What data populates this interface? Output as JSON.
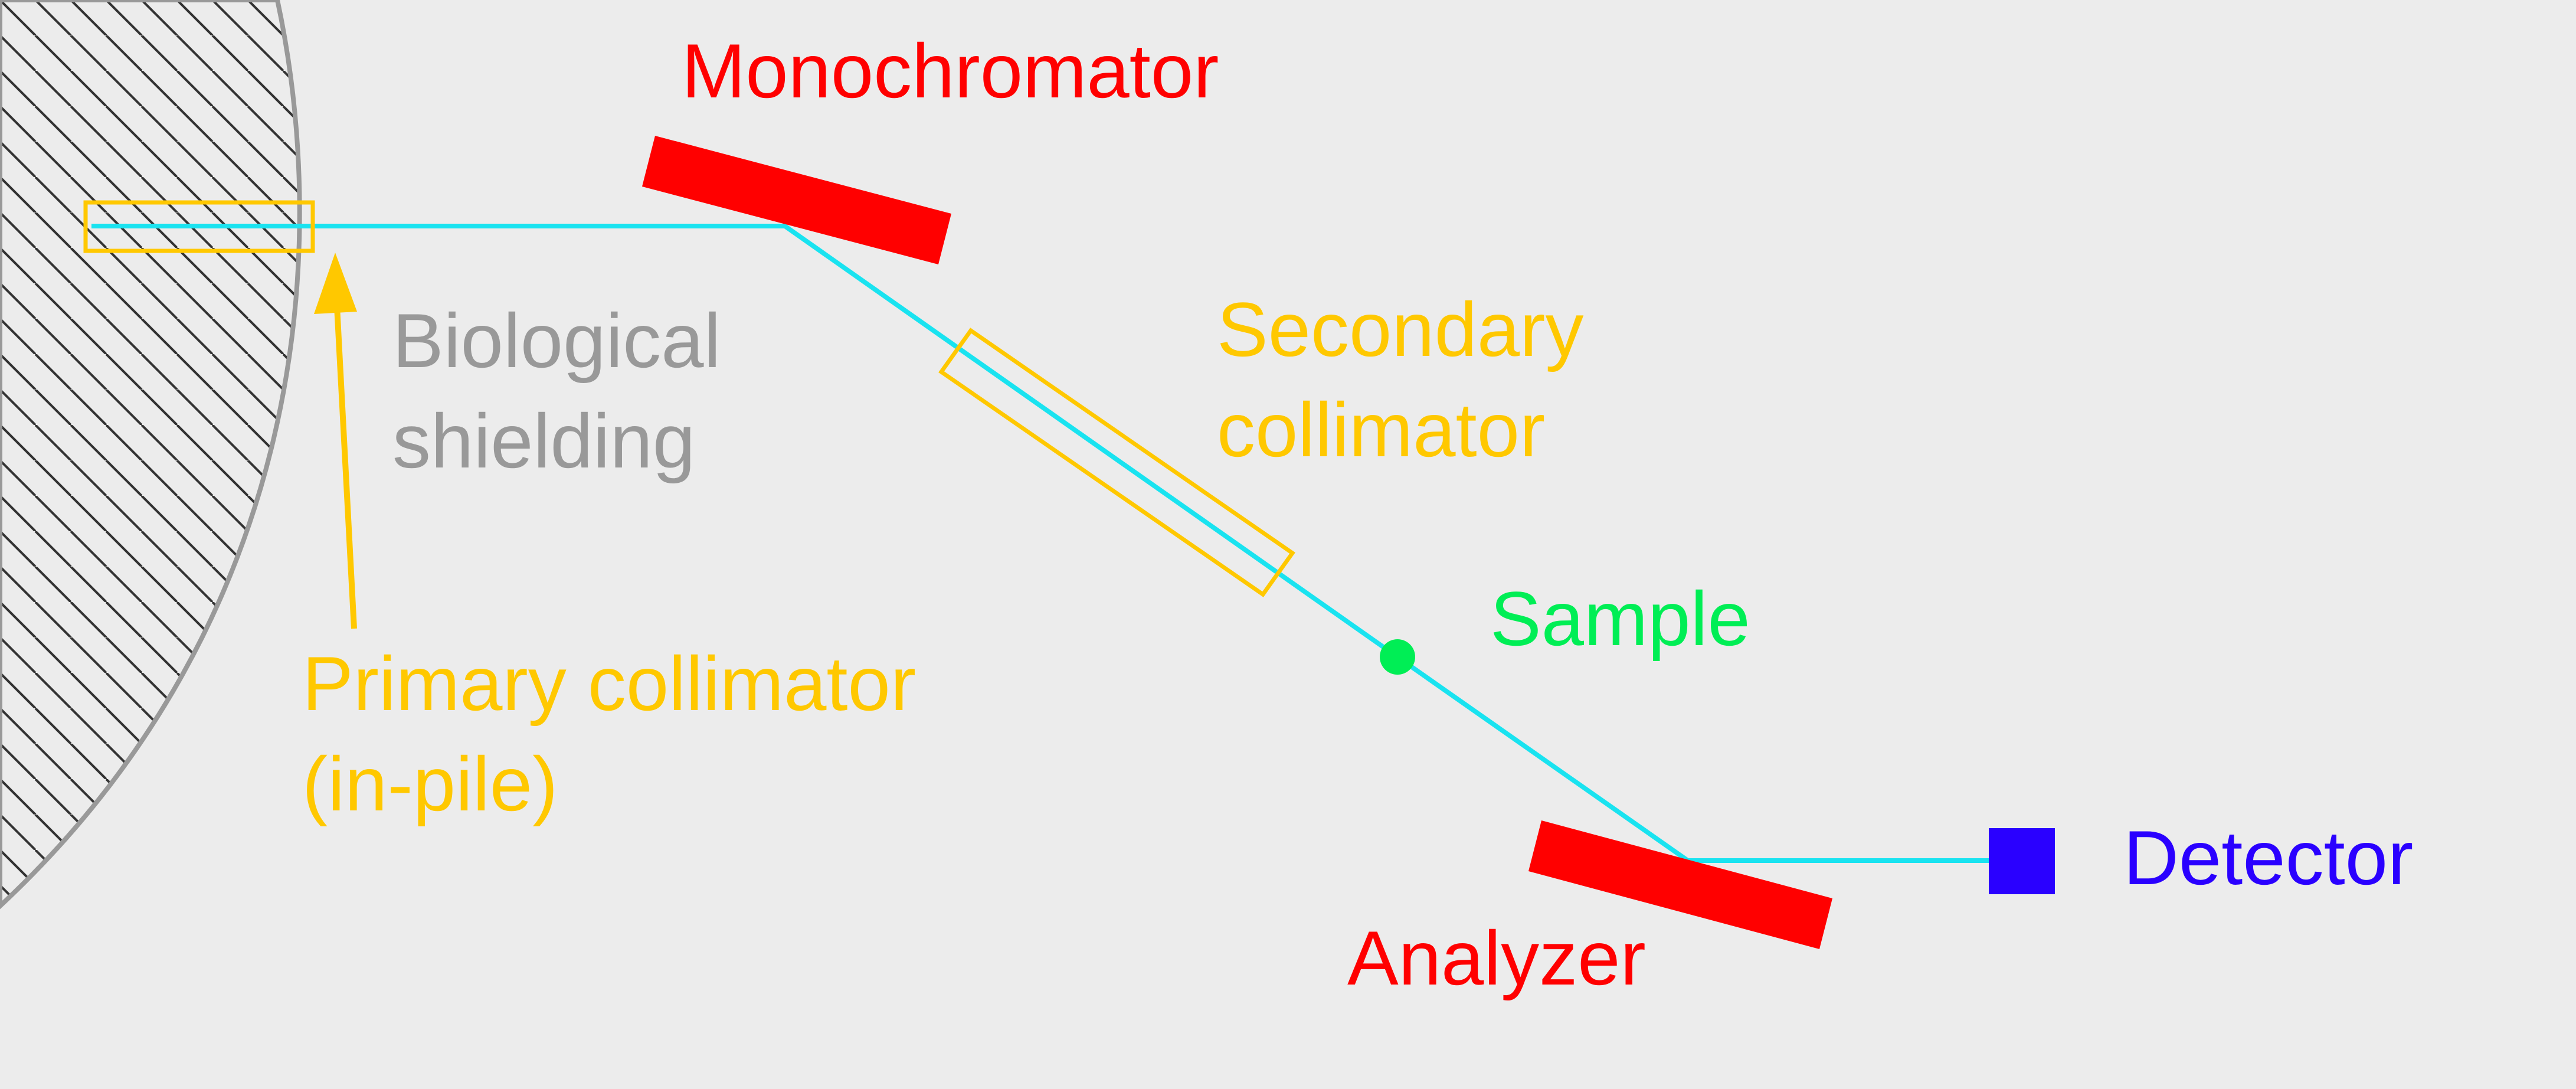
{
  "labels": {
    "monochromator": "Monochromator",
    "biological_shielding": [
      "Biological",
      "shielding"
    ],
    "secondary_collimator": [
      "Secondary",
      "collimator"
    ],
    "sample": "Sample",
    "primary_collimator": [
      "Primary collimator",
      "(in-pile)"
    ],
    "detector": "Detector",
    "analyzer": "Analyzer"
  },
  "colors": {
    "background": "#ececec",
    "beam": "#19e3f0",
    "crystal": "#ff0000",
    "collimator": "#ffc800",
    "shielding": "#999999",
    "shielding_hatch": "#333333",
    "sample": "#00ee55",
    "detector": "#2a00ff"
  }
}
